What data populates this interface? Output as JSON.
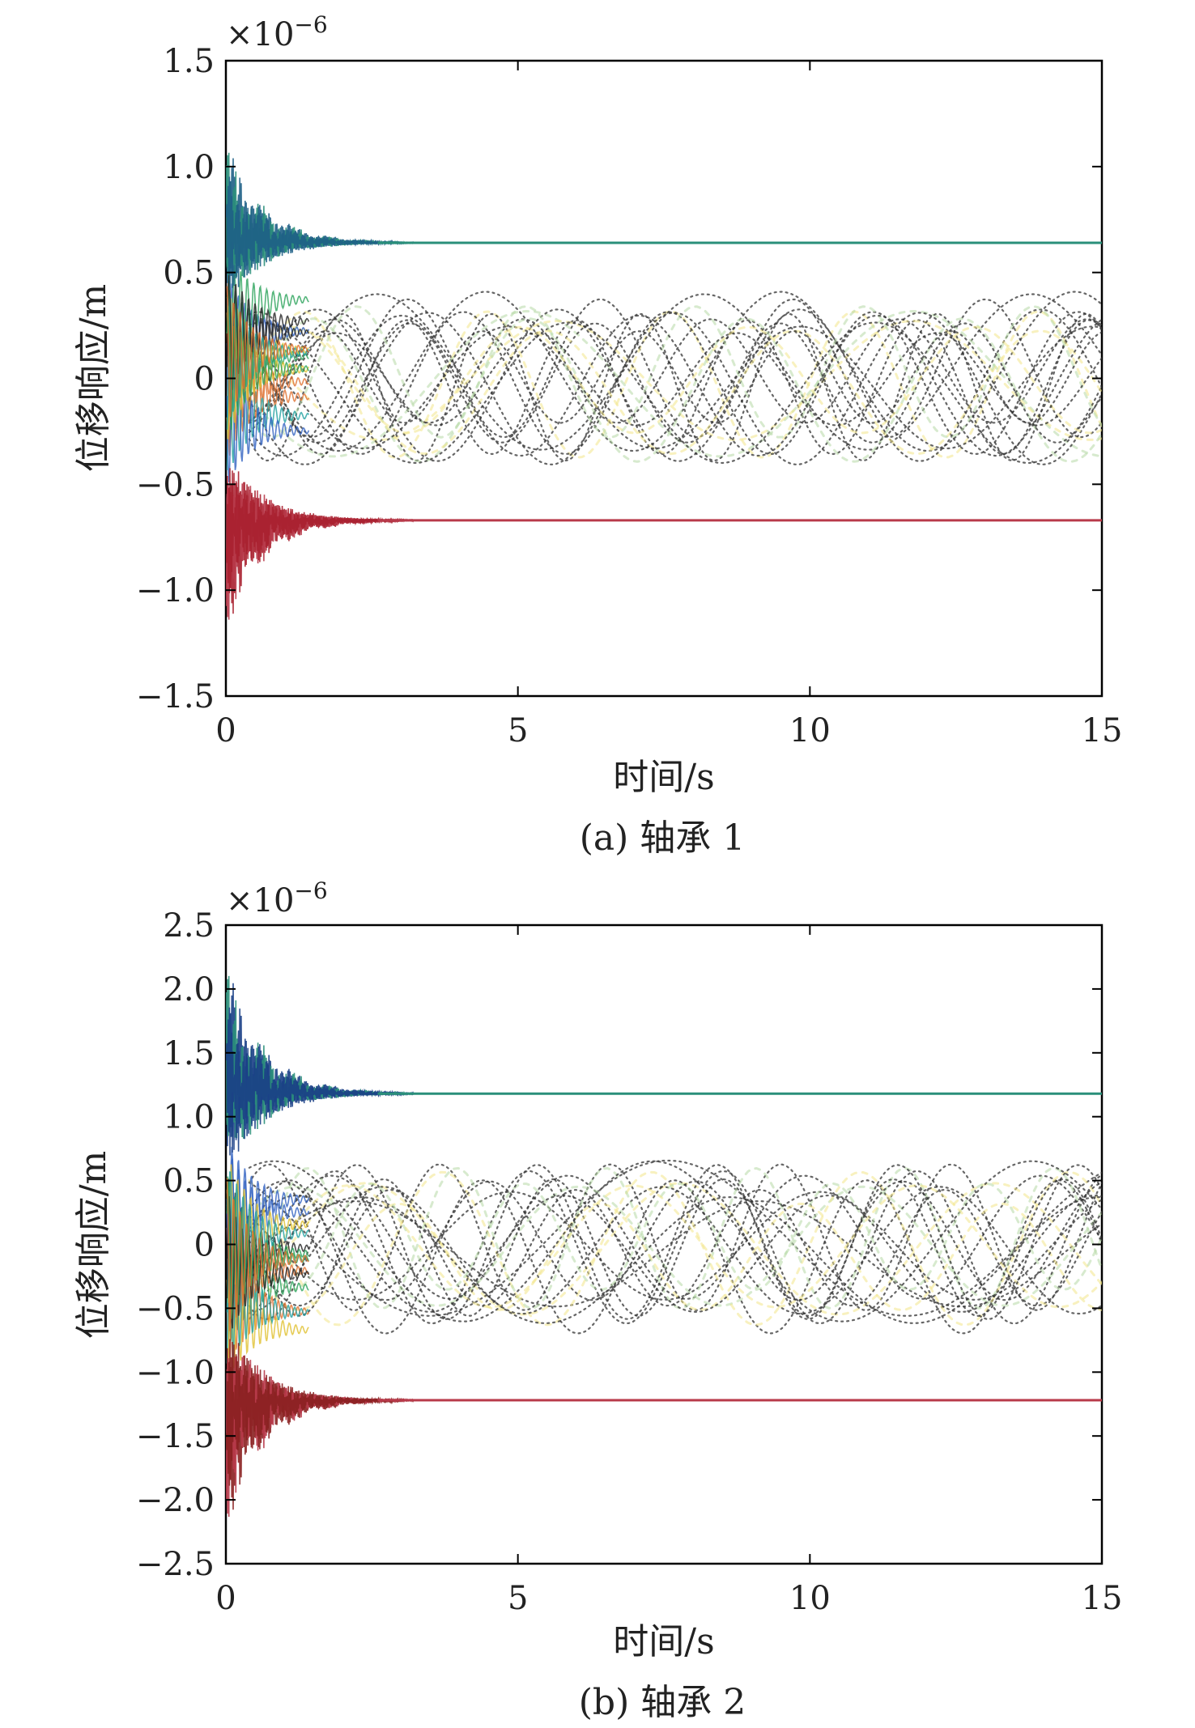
{
  "figure": {
    "panels": [
      {
        "caption": "(a) 轴承 1",
        "multiplier_base": "×10",
        "multiplier_exp": "−6"
      },
      {
        "caption": "(b) 轴承 2",
        "multiplier_base": "×10",
        "multiplier_exp": "−6"
      }
    ]
  },
  "chart_data": [
    {
      "type": "line",
      "title": "",
      "xlabel": "时间/s",
      "ylabel": "位移响应/m",
      "xlim": [
        0,
        15
      ],
      "ylim": [
        -1.5,
        1.5
      ],
      "x_ticks": [
        0,
        5,
        10,
        15
      ],
      "x_tick_labels": [
        "0",
        "5",
        "10",
        "15"
      ],
      "y_ticks": [
        -1.5,
        -1.0,
        -0.5,
        0,
        0.5,
        1.0,
        1.5
      ],
      "y_tick_labels": [
        "−1.5",
        "−1.0",
        "−0.5",
        "0",
        "0.5",
        "1.0",
        "1.5"
      ],
      "y_scale": "1e-6",
      "grid": false,
      "series": [
        {
          "kind": "upper-envelope",
          "color": "#1e5f86",
          "settle_color": "#2a8f7a",
          "peak": 1.12,
          "steady": 0.64
        },
        {
          "kind": "lower-envelope",
          "color": "#a8202f",
          "settle_color": "#b83a4a",
          "peak": -1.2,
          "steady": -0.67
        },
        {
          "kind": "dotted-oscillation",
          "color": "#333333",
          "amplitude_range": [
            -0.4,
            0.38
          ]
        }
      ]
    },
    {
      "type": "line",
      "title": "",
      "xlabel": "时间/s",
      "ylabel": "位移响应/m",
      "xlim": [
        0,
        15
      ],
      "ylim": [
        -2.5,
        2.5
      ],
      "x_ticks": [
        0,
        5,
        10,
        15
      ],
      "x_tick_labels": [
        "0",
        "5",
        "10",
        "15"
      ],
      "y_ticks": [
        -2.5,
        -2.0,
        -1.5,
        -1.0,
        -0.5,
        0,
        0.5,
        1.0,
        1.5,
        2.0,
        2.5
      ],
      "y_tick_labels": [
        "−2.5",
        "−2.0",
        "−1.5",
        "−1.0",
        "−0.5",
        "0",
        "0.5",
        "1.0",
        "1.5",
        "2.0",
        "2.5"
      ],
      "y_scale": "1e-6",
      "grid": false,
      "series": [
        {
          "kind": "upper-envelope",
          "color": "#1a3f86",
          "settle_color": "#2a8f7a",
          "peak": 2.22,
          "steady": 1.18
        },
        {
          "kind": "lower-envelope",
          "color": "#8a2020",
          "settle_color": "#b83a4a",
          "peak": -2.25,
          "steady": -1.22
        },
        {
          "kind": "dotted-oscillation",
          "color": "#333333",
          "amplitude_range": [
            -0.72,
            0.68
          ]
        }
      ]
    }
  ]
}
